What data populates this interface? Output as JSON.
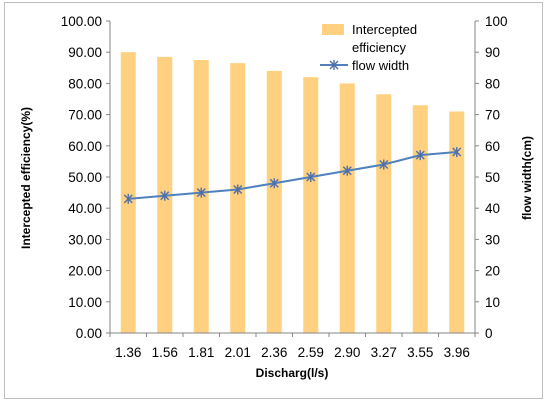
{
  "chart_data": {
    "type": "bar+line",
    "title": "",
    "categories": [
      "1.36",
      "1.56",
      "1.81",
      "2.01",
      "2.36",
      "2.59",
      "2.90",
      "3.27",
      "3.55",
      "3.96"
    ],
    "xlabel": "Discharg(l/s)",
    "ylabel_left": "Intercepted efficiency(%)",
    "ylabel_right": "flow width(cm)",
    "ylim_left": [
      0,
      100
    ],
    "ylim_right": [
      0,
      100
    ],
    "yticks_left": [
      "0.00",
      "10.00",
      "20.00",
      "30.00",
      "40.00",
      "50.00",
      "60.00",
      "70.00",
      "80.00",
      "90.00",
      "100.00"
    ],
    "yticks_right": [
      "0",
      "10",
      "20",
      "30",
      "40",
      "50",
      "60",
      "70",
      "80",
      "90",
      "100"
    ],
    "grid": false,
    "legend_position": "top-right",
    "series": [
      {
        "name": "Intercepted efficiency",
        "type": "bar",
        "axis": "left",
        "color": "#FFD07F",
        "values": [
          90.0,
          88.5,
          87.5,
          86.5,
          84.0,
          82.0,
          80.0,
          76.5,
          73.0,
          71.0
        ]
      },
      {
        "name": "flow width",
        "type": "line",
        "axis": "right",
        "color": "#4F81BD",
        "marker": "asterisk",
        "values": [
          43,
          44,
          45,
          46,
          48,
          50,
          52,
          54,
          57,
          58
        ]
      }
    ]
  }
}
